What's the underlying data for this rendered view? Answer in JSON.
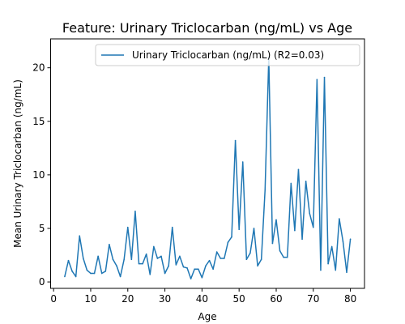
{
  "chart_data": {
    "type": "line",
    "title": "Feature: Urinary Triclocarban (ng/mL) vs Age",
    "xlabel": "Age",
    "ylabel": "Mean Urinary Triclocarban (ng/mL)",
    "xlim": [
      -0.8,
      83.8
    ],
    "ylim": [
      -0.6,
      22.7
    ],
    "xticks": [
      0,
      10,
      20,
      30,
      40,
      50,
      60,
      70,
      80
    ],
    "yticks": [
      0,
      5,
      10,
      15,
      20
    ],
    "grid": false,
    "legend_position": "top-right",
    "series": [
      {
        "name": "Urinary Triclocarban (ng/mL) (R2=0.03)",
        "color": "#1f77b4",
        "x": [
          3,
          4,
          5,
          6,
          7,
          8,
          9,
          10,
          11,
          12,
          13,
          14,
          15,
          16,
          17,
          18,
          19,
          20,
          21,
          22,
          23,
          24,
          25,
          26,
          27,
          28,
          29,
          30,
          31,
          32,
          33,
          34,
          35,
          36,
          37,
          38,
          39,
          40,
          41,
          42,
          43,
          44,
          45,
          46,
          47,
          48,
          49,
          50,
          51,
          52,
          53,
          54,
          55,
          56,
          57,
          58,
          59,
          60,
          61,
          62,
          63,
          64,
          65,
          66,
          67,
          68,
          69,
          70,
          71,
          72,
          73,
          74,
          75,
          76,
          77,
          78,
          79,
          80
        ],
        "y": [
          0.5,
          2.0,
          1.0,
          0.5,
          4.3,
          2.2,
          1.1,
          0.8,
          0.8,
          2.4,
          0.8,
          1.0,
          3.5,
          2.1,
          1.5,
          0.5,
          2.1,
          5.1,
          2.1,
          6.6,
          1.7,
          1.7,
          2.6,
          0.7,
          3.3,
          2.2,
          2.4,
          0.8,
          1.5,
          5.1,
          1.6,
          2.4,
          1.4,
          1.3,
          0.3,
          1.2,
          1.2,
          0.4,
          1.5,
          2.0,
          1.2,
          2.8,
          2.2,
          2.2,
          3.7,
          4.2,
          13.2,
          4.9,
          11.2,
          2.1,
          2.7,
          5.0,
          1.5,
          2.1,
          8.6,
          21.0,
          3.6,
          5.8,
          2.9,
          2.3,
          2.3,
          9.2,
          4.8,
          10.5,
          4.0,
          9.4,
          6.4,
          5.1,
          18.9,
          1.1,
          19.1,
          1.7,
          3.3,
          1.1,
          5.9,
          3.8,
          0.9,
          4.0
        ]
      }
    ]
  }
}
